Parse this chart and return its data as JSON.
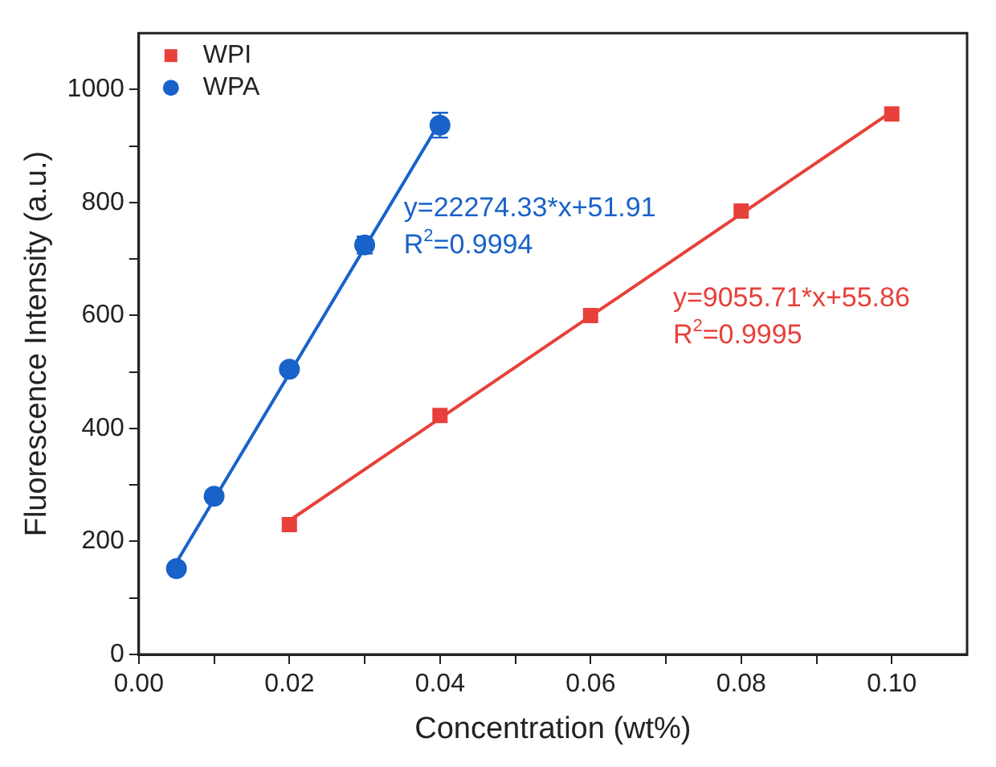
{
  "chart_data": {
    "type": "scatter",
    "xlabel": "Concentration (wt%)",
    "ylabel": "Fluorescence Intensity (a.u.)",
    "xlim": [
      0,
      0.11
    ],
    "ylim": [
      0,
      1100
    ],
    "xticks": [
      {
        "value": 0,
        "label": "0.00"
      },
      {
        "value": 0.01,
        "label": null
      },
      {
        "value": 0.02,
        "label": "0.02"
      },
      {
        "value": 0.03,
        "label": null
      },
      {
        "value": 0.04,
        "label": "0.04"
      },
      {
        "value": 0.05,
        "label": null
      },
      {
        "value": 0.06,
        "label": "0.06"
      },
      {
        "value": 0.07,
        "label": null
      },
      {
        "value": 0.08,
        "label": "0.08"
      },
      {
        "value": 0.09,
        "label": null
      },
      {
        "value": 0.1,
        "label": "0.10"
      }
    ],
    "yticks": [
      0,
      {
        "value": 100,
        "label": null
      },
      200,
      {
        "value": 300,
        "label": null
      },
      400,
      {
        "value": 500,
        "label": null
      },
      600,
      {
        "value": 700,
        "label": null
      },
      800,
      {
        "value": 900,
        "label": null
      },
      1000
    ],
    "grid": false,
    "legend": "top left",
    "series": [
      {
        "name": "WPI",
        "marker": "square",
        "color": "#e8403a",
        "x": [
          0.02,
          0.04,
          0.06,
          0.08,
          0.1
        ],
        "values": [
          230,
          423,
          600,
          785,
          957
        ]
      },
      {
        "name": "WPA",
        "marker": "circle",
        "color": "#1862c9",
        "x": [
          0.005,
          0.01,
          0.02,
          0.03,
          0.04
        ],
        "values": [
          152,
          280,
          505,
          725,
          937
        ],
        "errors": [
          null,
          null,
          null,
          15,
          22
        ]
      },
      {
        "type": "line",
        "marker": "none",
        "color": "#e8403a",
        "x": [
          0.02,
          0.1
        ],
        "values": [
          237,
          961
        ]
      },
      {
        "type": "line",
        "marker": "none",
        "color": "#1862c9",
        "x": [
          0.005,
          0.04
        ],
        "values": [
          163,
          943
        ]
      }
    ],
    "annotations": [
      "y=9055.71*x+55.86",
      "R$^{2}$=0.9995",
      "y=22274.33*x+51.91",
      "R$^{2}$=0.9994"
    ]
  }
}
